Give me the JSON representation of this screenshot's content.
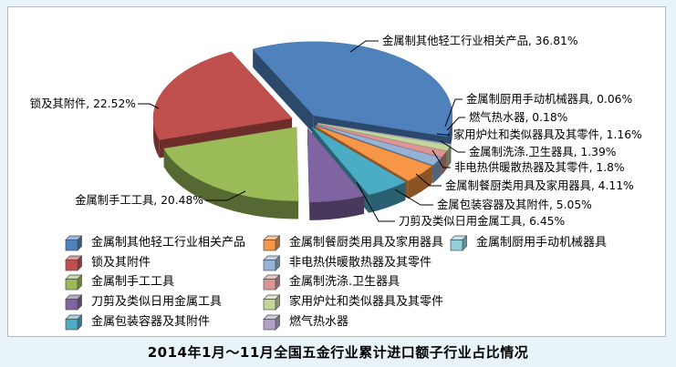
{
  "page": {
    "background": "#e9f4fa",
    "panel_background": "#ffffff",
    "panel_border": "#b9b9b9",
    "leader_line_color": "#000000",
    "label_text_color": "#000000"
  },
  "title": {
    "text": "2014年1月～11月全国五金行业累计进口额子行业占比情况"
  },
  "chart_data": {
    "type": "pie",
    "style": "3d-exploded",
    "title": "2014年1月～11月全国五金行业累计进口额子行业占比情况",
    "unit": "percent",
    "legend_position": "bottom",
    "total": 100,
    "series": [
      {
        "name": "金属制其他轻工行业相关产品",
        "value": 36.81,
        "label": "金属制其他轻工行业相关产品, 36.81%",
        "color": "#4F81BD"
      },
      {
        "name": "锁及其附件",
        "value": 22.52,
        "label": "锁及其附件, 22.52%",
        "color": "#C0504D"
      },
      {
        "name": "金属制手工工具",
        "value": 20.48,
        "label": "金属制手工工具, 20.48%",
        "color": "#9BBB59"
      },
      {
        "name": "刀剪及类似日用金属工具",
        "value": 6.45,
        "label": "刀剪及类似日用金属工具, 6.45%",
        "color": "#8064A2"
      },
      {
        "name": "金属包装容器及其附件",
        "value": 5.05,
        "label": "金属包装容器及其附件, 5.05%",
        "color": "#4BACC6"
      },
      {
        "name": "金属制餐厨类用具及家用器具",
        "value": 4.11,
        "label": "金属制餐厨类用具及家用器具, 4.11%",
        "color": "#F79646"
      },
      {
        "name": "非电热供暖散热器及其零件",
        "value": 1.8,
        "label": "非电热供暖散热器及其零件, 1.8%",
        "color": "#95B3D7"
      },
      {
        "name": "金属制洗涤.卫生器具",
        "value": 1.39,
        "label": "金属制洗涤.卫生器具, 1.39%",
        "color": "#D99694"
      },
      {
        "name": "家用炉灶和类似器具及其零件",
        "value": 1.16,
        "label": "家用炉灶和类似器具及其零件, 1.16%",
        "color": "#C3D69B"
      },
      {
        "name": "燃气热水器",
        "value": 0.18,
        "label": "燃气热水器, 0.18%",
        "color": "#B2A1C7"
      },
      {
        "name": "金属制厨用手动机械器具",
        "value": 0.06,
        "label": "金属制厨用手动机械器具, 0.06%",
        "color": "#92CDDC"
      }
    ]
  }
}
